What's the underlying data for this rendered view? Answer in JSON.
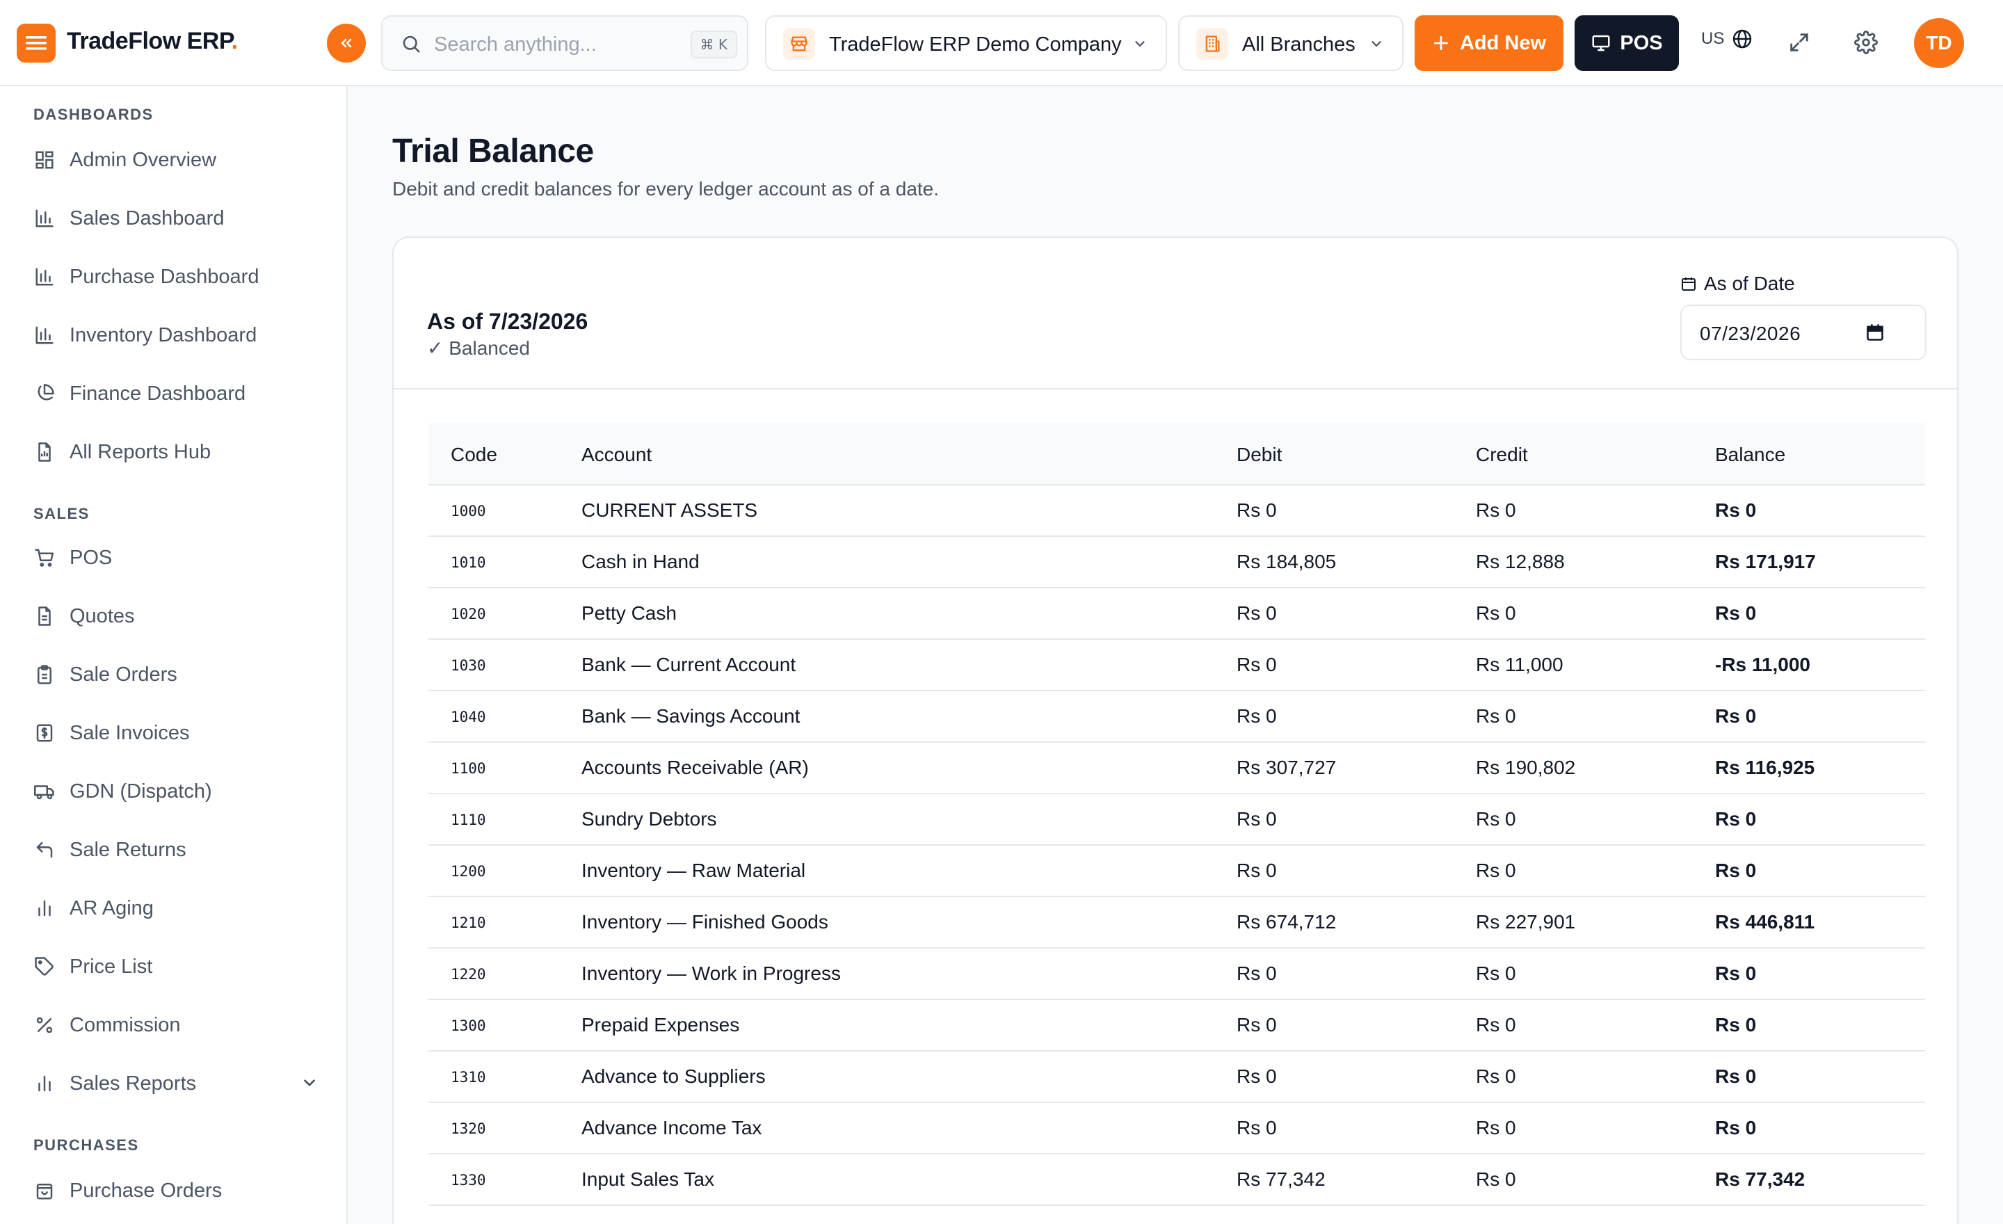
{
  "app": {
    "name": "TradeFlow ERP",
    "name_dot": "."
  },
  "topbar": {
    "search_placeholder": "Search anything...",
    "search_shortcut": "⌘ K",
    "company": "TradeFlow ERP Demo Company",
    "branch": "All Branches",
    "add_new": "Add New",
    "pos": "POS",
    "lang": "US",
    "avatar": "TD",
    "accent_color": "#f97316"
  },
  "sidebar": {
    "sections": [
      {
        "title": "DASHBOARDS",
        "items": [
          {
            "label": "Admin Overview",
            "icon": "grid-icon"
          },
          {
            "label": "Sales Dashboard",
            "icon": "bar-chart-icon"
          },
          {
            "label": "Purchase Dashboard",
            "icon": "bar-chart-icon"
          },
          {
            "label": "Inventory Dashboard",
            "icon": "bar-chart-icon"
          },
          {
            "label": "Finance Dashboard",
            "icon": "pie-chart-icon"
          },
          {
            "label": "All Reports Hub",
            "icon": "report-icon"
          }
        ]
      },
      {
        "title": "SALES",
        "items": [
          {
            "label": "POS",
            "icon": "cart-icon"
          },
          {
            "label": "Quotes",
            "icon": "document-icon"
          },
          {
            "label": "Sale Orders",
            "icon": "clipboard-icon"
          },
          {
            "label": "Sale Invoices",
            "icon": "invoice-icon"
          },
          {
            "label": "GDN (Dispatch)",
            "icon": "truck-icon"
          },
          {
            "label": "Sale Returns",
            "icon": "return-icon"
          },
          {
            "label": "AR Aging",
            "icon": "bar-chart-icon"
          },
          {
            "label": "Price List",
            "icon": "tag-icon"
          },
          {
            "label": "Commission",
            "icon": "percent-icon"
          },
          {
            "label": "Sales Reports",
            "icon": "bar-chart-icon"
          }
        ]
      },
      {
        "title": "PURCHASES",
        "items": [
          {
            "label": "Purchase Orders",
            "icon": "bag-icon"
          }
        ]
      }
    ]
  },
  "page": {
    "title": "Trial Balance",
    "subtitle": "Debit and credit balances for every ledger account as of a date."
  },
  "report": {
    "as_of": "As of 7/23/2026",
    "status": "✓ Balanced",
    "date_label": "As of Date",
    "date_value": "07/23/2026"
  },
  "table": {
    "headers": [
      "Code",
      "Account",
      "Debit",
      "Credit",
      "Balance"
    ],
    "rows": [
      {
        "code": "1000",
        "account": "CURRENT ASSETS",
        "debit": "Rs 0",
        "credit": "Rs 0",
        "balance": "Rs 0"
      },
      {
        "code": "1010",
        "account": "Cash in Hand",
        "debit": "Rs 184,805",
        "credit": "Rs 12,888",
        "balance": "Rs 171,917"
      },
      {
        "code": "1020",
        "account": "Petty Cash",
        "debit": "Rs 0",
        "credit": "Rs 0",
        "balance": "Rs 0"
      },
      {
        "code": "1030",
        "account": "Bank — Current Account",
        "debit": "Rs 0",
        "credit": "Rs 11,000",
        "balance": "-Rs 11,000"
      },
      {
        "code": "1040",
        "account": "Bank — Savings Account",
        "debit": "Rs 0",
        "credit": "Rs 0",
        "balance": "Rs 0"
      },
      {
        "code": "1100",
        "account": "Accounts Receivable (AR)",
        "debit": "Rs 307,727",
        "credit": "Rs 190,802",
        "balance": "Rs 116,925"
      },
      {
        "code": "1110",
        "account": "Sundry Debtors",
        "debit": "Rs 0",
        "credit": "Rs 0",
        "balance": "Rs 0"
      },
      {
        "code": "1200",
        "account": "Inventory — Raw Material",
        "debit": "Rs 0",
        "credit": "Rs 0",
        "balance": "Rs 0"
      },
      {
        "code": "1210",
        "account": "Inventory — Finished Goods",
        "debit": "Rs 674,712",
        "credit": "Rs 227,901",
        "balance": "Rs 446,811"
      },
      {
        "code": "1220",
        "account": "Inventory — Work in Progress",
        "debit": "Rs 0",
        "credit": "Rs 0",
        "balance": "Rs 0"
      },
      {
        "code": "1300",
        "account": "Prepaid Expenses",
        "debit": "Rs 0",
        "credit": "Rs 0",
        "balance": "Rs 0"
      },
      {
        "code": "1310",
        "account": "Advance to Suppliers",
        "debit": "Rs 0",
        "credit": "Rs 0",
        "balance": "Rs 0"
      },
      {
        "code": "1320",
        "account": "Advance Income Tax",
        "debit": "Rs 0",
        "credit": "Rs 0",
        "balance": "Rs 0"
      },
      {
        "code": "1330",
        "account": "Input Sales Tax",
        "debit": "Rs 77,342",
        "credit": "Rs 0",
        "balance": "Rs 77,342"
      }
    ]
  }
}
